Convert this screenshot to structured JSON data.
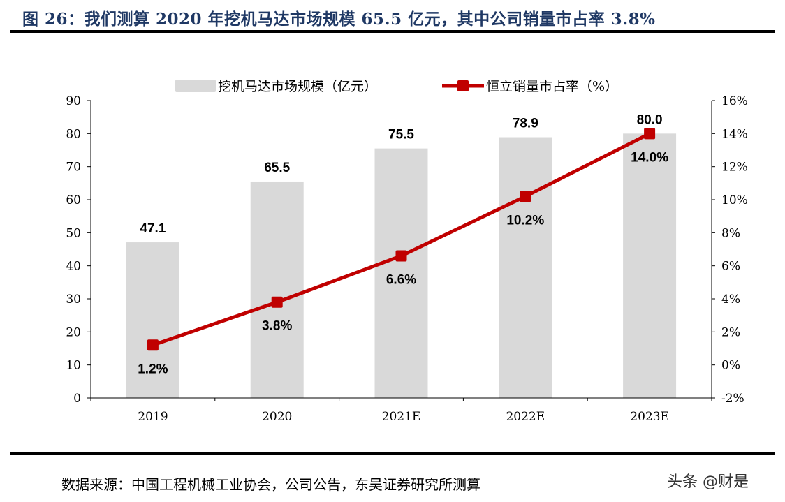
{
  "title": "图 26：我们测算 2020 年挖机马达市场规模 65.5 亿元，其中公司销量市占率 3.8%",
  "source": "数据来源：中国工程机械工业协会，公司公告，东吴证券研究所测算",
  "watermark": "头条 @财是",
  "chart_data": {
    "type": "bar+line",
    "categories": [
      "2019",
      "2020",
      "2021E",
      "2022E",
      "2023E"
    ],
    "series": [
      {
        "name": "挖机马达市场规模（亿元）",
        "type": "bar",
        "axis": "left",
        "values": [
          47.1,
          65.5,
          75.5,
          78.9,
          80.0
        ],
        "labels": [
          "47.1",
          "65.5",
          "75.5",
          "78.9",
          "80.0"
        ],
        "color": "#d9d9d9"
      },
      {
        "name": "恒立销量市占率（%）",
        "type": "line",
        "axis": "right",
        "values": [
          1.2,
          3.8,
          6.6,
          10.2,
          14.0
        ],
        "labels": [
          "1.2%",
          "3.8%",
          "6.6%",
          "10.2%",
          "14.0%"
        ],
        "color": "#c00000"
      }
    ],
    "y_left": {
      "min": 0,
      "max": 90,
      "ticks": [
        "0",
        "10",
        "20",
        "30",
        "40",
        "50",
        "60",
        "70",
        "80",
        "90"
      ]
    },
    "y_right": {
      "min": -2,
      "max": 16,
      "ticks": [
        "-2%",
        "0%",
        "2%",
        "4%",
        "6%",
        "8%",
        "10%",
        "12%",
        "14%",
        "16%"
      ]
    },
    "legend_position": "top",
    "grid": false
  }
}
